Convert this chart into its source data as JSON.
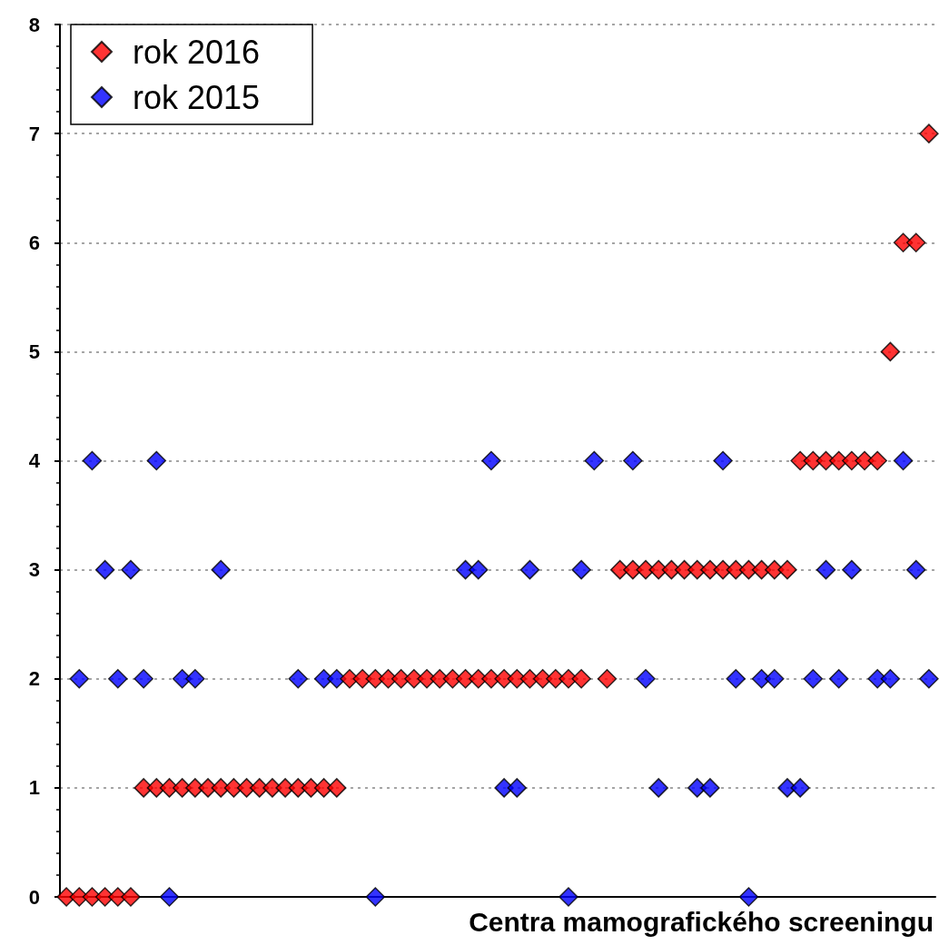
{
  "chart_data": {
    "type": "scatter",
    "xlabel": "Centra mamografického screeningu",
    "categories": [
      null,
      null,
      null,
      null,
      null,
      null,
      null,
      null,
      null,
      null,
      null,
      null,
      null,
      null,
      null,
      null,
      null,
      null,
      null,
      null,
      null,
      null,
      null,
      null,
      null,
      null,
      null,
      null,
      null,
      null,
      null,
      null,
      null,
      null,
      null,
      null,
      null,
      null,
      null,
      null,
      null,
      null,
      null,
      null,
      null,
      null,
      null,
      null,
      null,
      null,
      null,
      null,
      null,
      null,
      null,
      null,
      null,
      null,
      null,
      null,
      null,
      null,
      null,
      null,
      null,
      null,
      null,
      null
    ],
    "series": [
      {
        "name": "rok 2016",
        "color": "#ff0000",
        "values": [
          0,
          0,
          0,
          0,
          0,
          0,
          1,
          1,
          1,
          1,
          1,
          1,
          1,
          1,
          1,
          1,
          1,
          1,
          1,
          1,
          1,
          1,
          2,
          2,
          2,
          2,
          2,
          2,
          2,
          2,
          2,
          2,
          2,
          2,
          2,
          2,
          2,
          2,
          2,
          2,
          2,
          null,
          2,
          3,
          3,
          3,
          3,
          3,
          3,
          3,
          3,
          3,
          3,
          3,
          3,
          3,
          3,
          4,
          4,
          4,
          4,
          4,
          4,
          4,
          5,
          6,
          6,
          7
        ]
      },
      {
        "name": "rok 2015",
        "color": "#0000ff",
        "values": [
          null,
          2,
          4,
          3,
          2,
          3,
          2,
          4,
          0,
          2,
          2,
          null,
          3,
          null,
          null,
          null,
          null,
          null,
          2,
          null,
          2,
          2,
          null,
          null,
          0,
          null,
          null,
          null,
          null,
          null,
          null,
          3,
          3,
          4,
          1,
          1,
          3,
          null,
          null,
          0,
          3,
          4,
          null,
          null,
          4,
          2,
          1,
          null,
          null,
          1,
          1,
          4,
          2,
          0,
          2,
          2,
          1,
          1,
          2,
          3,
          2,
          3,
          null,
          2,
          2,
          4,
          3,
          2
        ]
      }
    ],
    "ylim": [
      0,
      8
    ],
    "yticks": [
      0,
      1,
      2,
      3,
      4,
      5,
      6,
      7,
      8
    ],
    "tick_labels": "y",
    "grid": "y",
    "legend": "top left",
    "marker": "diamond"
  }
}
